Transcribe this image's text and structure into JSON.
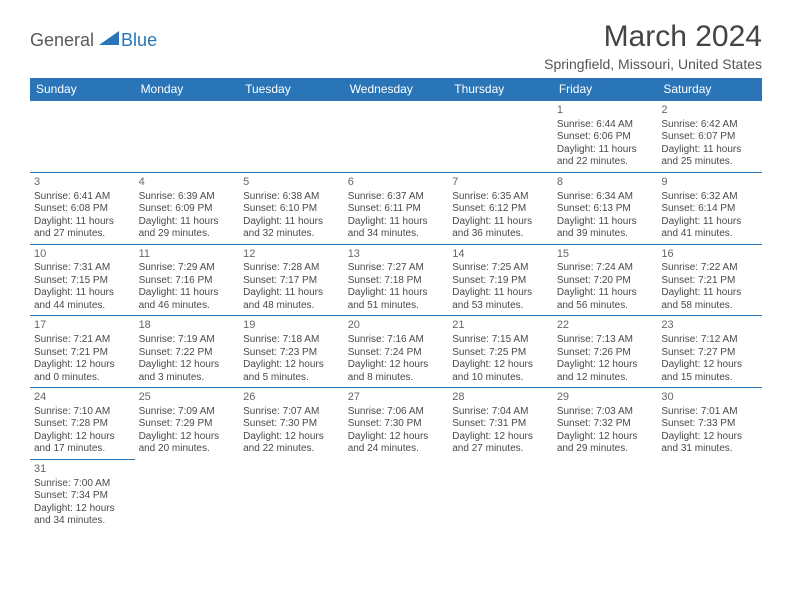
{
  "logo": {
    "general": "General",
    "blue": "Blue"
  },
  "header": {
    "title": "March 2024",
    "location": "Springfield, Missouri, United States"
  },
  "colors": {
    "accent": "#2975b8",
    "text": "#4a4a4a",
    "subtext": "#666666"
  },
  "weekdays": [
    "Sunday",
    "Monday",
    "Tuesday",
    "Wednesday",
    "Thursday",
    "Friday",
    "Saturday"
  ],
  "weeks": [
    [
      null,
      null,
      null,
      null,
      null,
      {
        "n": "1",
        "sr": "Sunrise: 6:44 AM",
        "ss": "Sunset: 6:06 PM",
        "d1": "Daylight: 11 hours",
        "d2": "and 22 minutes."
      },
      {
        "n": "2",
        "sr": "Sunrise: 6:42 AM",
        "ss": "Sunset: 6:07 PM",
        "d1": "Daylight: 11 hours",
        "d2": "and 25 minutes."
      }
    ],
    [
      {
        "n": "3",
        "sr": "Sunrise: 6:41 AM",
        "ss": "Sunset: 6:08 PM",
        "d1": "Daylight: 11 hours",
        "d2": "and 27 minutes."
      },
      {
        "n": "4",
        "sr": "Sunrise: 6:39 AM",
        "ss": "Sunset: 6:09 PM",
        "d1": "Daylight: 11 hours",
        "d2": "and 29 minutes."
      },
      {
        "n": "5",
        "sr": "Sunrise: 6:38 AM",
        "ss": "Sunset: 6:10 PM",
        "d1": "Daylight: 11 hours",
        "d2": "and 32 minutes."
      },
      {
        "n": "6",
        "sr": "Sunrise: 6:37 AM",
        "ss": "Sunset: 6:11 PM",
        "d1": "Daylight: 11 hours",
        "d2": "and 34 minutes."
      },
      {
        "n": "7",
        "sr": "Sunrise: 6:35 AM",
        "ss": "Sunset: 6:12 PM",
        "d1": "Daylight: 11 hours",
        "d2": "and 36 minutes."
      },
      {
        "n": "8",
        "sr": "Sunrise: 6:34 AM",
        "ss": "Sunset: 6:13 PM",
        "d1": "Daylight: 11 hours",
        "d2": "and 39 minutes."
      },
      {
        "n": "9",
        "sr": "Sunrise: 6:32 AM",
        "ss": "Sunset: 6:14 PM",
        "d1": "Daylight: 11 hours",
        "d2": "and 41 minutes."
      }
    ],
    [
      {
        "n": "10",
        "sr": "Sunrise: 7:31 AM",
        "ss": "Sunset: 7:15 PM",
        "d1": "Daylight: 11 hours",
        "d2": "and 44 minutes."
      },
      {
        "n": "11",
        "sr": "Sunrise: 7:29 AM",
        "ss": "Sunset: 7:16 PM",
        "d1": "Daylight: 11 hours",
        "d2": "and 46 minutes."
      },
      {
        "n": "12",
        "sr": "Sunrise: 7:28 AM",
        "ss": "Sunset: 7:17 PM",
        "d1": "Daylight: 11 hours",
        "d2": "and 48 minutes."
      },
      {
        "n": "13",
        "sr": "Sunrise: 7:27 AM",
        "ss": "Sunset: 7:18 PM",
        "d1": "Daylight: 11 hours",
        "d2": "and 51 minutes."
      },
      {
        "n": "14",
        "sr": "Sunrise: 7:25 AM",
        "ss": "Sunset: 7:19 PM",
        "d1": "Daylight: 11 hours",
        "d2": "and 53 minutes."
      },
      {
        "n": "15",
        "sr": "Sunrise: 7:24 AM",
        "ss": "Sunset: 7:20 PM",
        "d1": "Daylight: 11 hours",
        "d2": "and 56 minutes."
      },
      {
        "n": "16",
        "sr": "Sunrise: 7:22 AM",
        "ss": "Sunset: 7:21 PM",
        "d1": "Daylight: 11 hours",
        "d2": "and 58 minutes."
      }
    ],
    [
      {
        "n": "17",
        "sr": "Sunrise: 7:21 AM",
        "ss": "Sunset: 7:21 PM",
        "d1": "Daylight: 12 hours",
        "d2": "and 0 minutes."
      },
      {
        "n": "18",
        "sr": "Sunrise: 7:19 AM",
        "ss": "Sunset: 7:22 PM",
        "d1": "Daylight: 12 hours",
        "d2": "and 3 minutes."
      },
      {
        "n": "19",
        "sr": "Sunrise: 7:18 AM",
        "ss": "Sunset: 7:23 PM",
        "d1": "Daylight: 12 hours",
        "d2": "and 5 minutes."
      },
      {
        "n": "20",
        "sr": "Sunrise: 7:16 AM",
        "ss": "Sunset: 7:24 PM",
        "d1": "Daylight: 12 hours",
        "d2": "and 8 minutes."
      },
      {
        "n": "21",
        "sr": "Sunrise: 7:15 AM",
        "ss": "Sunset: 7:25 PM",
        "d1": "Daylight: 12 hours",
        "d2": "and 10 minutes."
      },
      {
        "n": "22",
        "sr": "Sunrise: 7:13 AM",
        "ss": "Sunset: 7:26 PM",
        "d1": "Daylight: 12 hours",
        "d2": "and 12 minutes."
      },
      {
        "n": "23",
        "sr": "Sunrise: 7:12 AM",
        "ss": "Sunset: 7:27 PM",
        "d1": "Daylight: 12 hours",
        "d2": "and 15 minutes."
      }
    ],
    [
      {
        "n": "24",
        "sr": "Sunrise: 7:10 AM",
        "ss": "Sunset: 7:28 PM",
        "d1": "Daylight: 12 hours",
        "d2": "and 17 minutes."
      },
      {
        "n": "25",
        "sr": "Sunrise: 7:09 AM",
        "ss": "Sunset: 7:29 PM",
        "d1": "Daylight: 12 hours",
        "d2": "and 20 minutes."
      },
      {
        "n": "26",
        "sr": "Sunrise: 7:07 AM",
        "ss": "Sunset: 7:30 PM",
        "d1": "Daylight: 12 hours",
        "d2": "and 22 minutes."
      },
      {
        "n": "27",
        "sr": "Sunrise: 7:06 AM",
        "ss": "Sunset: 7:30 PM",
        "d1": "Daylight: 12 hours",
        "d2": "and 24 minutes."
      },
      {
        "n": "28",
        "sr": "Sunrise: 7:04 AM",
        "ss": "Sunset: 7:31 PM",
        "d1": "Daylight: 12 hours",
        "d2": "and 27 minutes."
      },
      {
        "n": "29",
        "sr": "Sunrise: 7:03 AM",
        "ss": "Sunset: 7:32 PM",
        "d1": "Daylight: 12 hours",
        "d2": "and 29 minutes."
      },
      {
        "n": "30",
        "sr": "Sunrise: 7:01 AM",
        "ss": "Sunset: 7:33 PM",
        "d1": "Daylight: 12 hours",
        "d2": "and 31 minutes."
      }
    ],
    [
      {
        "n": "31",
        "sr": "Sunrise: 7:00 AM",
        "ss": "Sunset: 7:34 PM",
        "d1": "Daylight: 12 hours",
        "d2": "and 34 minutes."
      },
      null,
      null,
      null,
      null,
      null,
      null
    ]
  ]
}
